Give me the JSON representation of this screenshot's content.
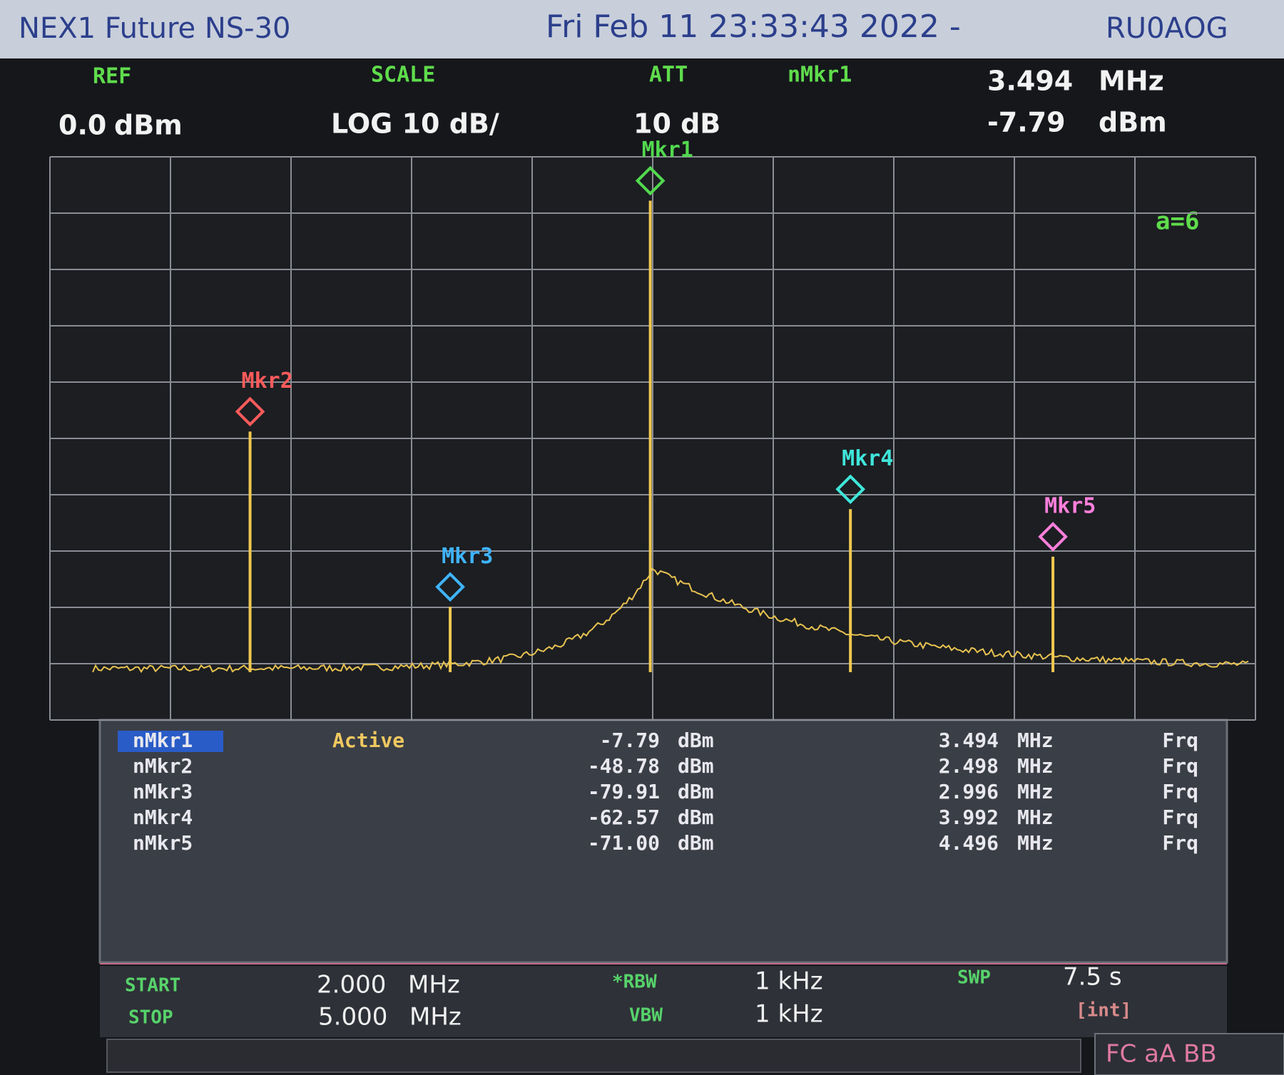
{
  "header": {
    "title": "NEX1 Future NS-30",
    "datetime": "Fri Feb 11 23:33:43 2022 -",
    "callsign": "RU0AOG"
  },
  "settings": {
    "ref_label": "REF",
    "ref": {
      "value": 0,
      "label": "0.0"
    },
    "ref_unit": "dBm",
    "scale_label": "SCALE",
    "scale": "LOG 10 dB/",
    "att_label": "ATT",
    "att": "10 dB",
    "active_label": "nMkr1"
  },
  "plot": {
    "xlim": [
      2,
      5
    ],
    "ylim": [
      -100,
      0
    ],
    "xticks": [
      2,
      2.3,
      2.6,
      2.9,
      3.2,
      3.5,
      3.8,
      4.1,
      4.4,
      4.7,
      5
    ],
    "yticks": [
      -100,
      -90,
      -80,
      -70,
      -60,
      -50,
      -40,
      -30,
      -20,
      -10,
      0
    ],
    "trace_label": "a=6"
  },
  "markers": [
    {
      "name": "nMkr1",
      "status": "Active",
      "plot_label": "Mkr1",
      "color": "#52d94f",
      "level": -7.79,
      "level_unit": "dBm",
      "freq": 3.494,
      "freq_unit": "MHz",
      "mode": "Frq"
    },
    {
      "name": "nMkr2",
      "plot_label": "Mkr2",
      "color": "#ff5b5b",
      "level": -48.78,
      "level_unit": "dBm",
      "freq": 2.498,
      "freq_unit": "MHz",
      "mode": "Frq"
    },
    {
      "name": "nMkr3",
      "plot_label": "Mkr3",
      "color": "#3fb4ff",
      "level": -79.91,
      "level_unit": "dBm",
      "freq": 2.996,
      "freq_unit": "MHz",
      "mode": "Frq"
    },
    {
      "name": "nMkr4",
      "plot_label": "Mkr4",
      "color": "#3fe6da",
      "level": -62.57,
      "level_unit": "dBm",
      "freq": 3.992,
      "freq_unit": "MHz",
      "mode": "Frq"
    },
    {
      "name": "nMkr5",
      "plot_label": "Mkr5",
      "color": "#ff7fdc",
      "level": -71,
      "level_label": "-71.00",
      "level_unit": "dBm",
      "freq": 4.496,
      "freq_unit": "MHz",
      "mode": "Frq"
    }
  ],
  "footer": {
    "start_label": "START",
    "start": {
      "value": 2,
      "label": "2.000"
    },
    "start_unit": "MHz",
    "stop_label": "STOP",
    "stop": {
      "value": 5,
      "label": "5.000"
    },
    "stop_unit": "MHz",
    "rbw_label": "*RBW",
    "rbw": "1 kHz",
    "vbw_label": "VBW",
    "vbw": "1 kHz",
    "swp_label": "SWP",
    "swp": "7.5 s",
    "swp_mode": "[int]",
    "status": "FC aA BB"
  }
}
